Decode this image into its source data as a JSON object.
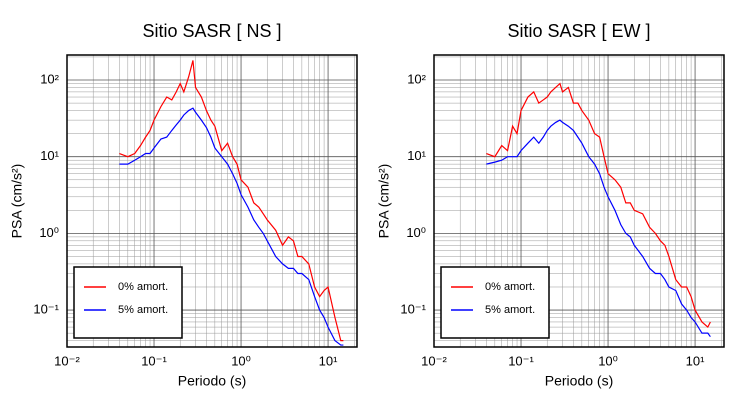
{
  "chart_data": [
    {
      "type": "line",
      "title": "Sitio SASR [ NS ]",
      "x_label": "Periodo (s)",
      "y_label": "PSA (cm/s²)",
      "log_x": true,
      "log_y": true,
      "grid": true,
      "legend": "lower left",
      "xlim": [
        0.01,
        21.5
      ],
      "ylim": [
        0.033,
        212
      ],
      "xticks": [
        {
          "value": 0.01,
          "label": "10⁻²"
        },
        {
          "value": 0.1,
          "label": "10⁻¹"
        },
        {
          "value": 1,
          "label": "10⁰"
        },
        {
          "value": 10,
          "label": "10¹"
        }
      ],
      "yticks": [
        {
          "value": 0.1,
          "label": "10⁻¹"
        },
        {
          "value": 1,
          "label": "10⁰"
        },
        {
          "value": 10,
          "label": "10¹"
        },
        {
          "value": 100,
          "label": "10²"
        }
      ],
      "x": [
        0.04,
        0.05,
        0.06,
        0.07,
        0.08,
        0.09,
        0.1,
        0.12,
        0.14,
        0.16,
        0.18,
        0.2,
        0.22,
        0.25,
        0.28,
        0.3,
        0.35,
        0.4,
        0.45,
        0.5,
        0.6,
        0.7,
        0.8,
        0.9,
        1.0,
        1.2,
        1.4,
        1.6,
        1.8,
        2,
        2.5,
        3,
        3.5,
        4,
        4.5,
        5,
        6,
        7,
        8,
        9,
        10,
        12,
        14,
        15
      ],
      "series": [
        {
          "name": "0% amort.",
          "color": "#ff0000",
          "values": [
            11,
            10,
            11,
            14,
            18,
            22,
            30,
            45,
            60,
            55,
            70,
            90,
            70,
            110,
            180,
            80,
            60,
            40,
            30,
            25,
            12,
            15,
            10,
            8,
            5,
            4,
            2.5,
            2.2,
            1.8,
            1.5,
            1.1,
            0.7,
            0.9,
            0.8,
            0.5,
            0.5,
            0.4,
            0.2,
            0.15,
            0.18,
            0.2,
            0.08,
            0.04,
            0.04
          ]
        },
        {
          "name": "5% amort.",
          "color": "#0000ff",
          "values": [
            8,
            8,
            9,
            10,
            11,
            11,
            13,
            17,
            18,
            22,
            26,
            30,
            35,
            40,
            43,
            38,
            30,
            24,
            18,
            13,
            10,
            8,
            6,
            4.5,
            3.2,
            2.2,
            1.5,
            1.2,
            1.0,
            0.8,
            0.5,
            0.4,
            0.35,
            0.35,
            0.3,
            0.3,
            0.25,
            0.15,
            0.1,
            0.08,
            0.06,
            0.04,
            0.035,
            0.035
          ]
        }
      ]
    },
    {
      "type": "line",
      "title": "Sitio SASR [ EW ]",
      "x_label": "Periodo (s)",
      "y_label": "PSA (cm/s²)",
      "log_x": true,
      "log_y": true,
      "grid": true,
      "legend": "lower left",
      "xlim": [
        0.01,
        21.5
      ],
      "ylim": [
        0.033,
        212
      ],
      "xticks": [
        {
          "value": 0.01,
          "label": "10⁻²"
        },
        {
          "value": 0.1,
          "label": "10⁻¹"
        },
        {
          "value": 1,
          "label": "10⁰"
        },
        {
          "value": 10,
          "label": "10¹"
        }
      ],
      "yticks": [
        {
          "value": 0.1,
          "label": "10⁻¹"
        },
        {
          "value": 1,
          "label": "10⁰"
        },
        {
          "value": 10,
          "label": "10¹"
        },
        {
          "value": 100,
          "label": "10²"
        }
      ],
      "x": [
        0.04,
        0.05,
        0.06,
        0.07,
        0.08,
        0.09,
        0.1,
        0.12,
        0.14,
        0.16,
        0.18,
        0.2,
        0.22,
        0.25,
        0.28,
        0.3,
        0.35,
        0.4,
        0.45,
        0.5,
        0.6,
        0.7,
        0.8,
        0.9,
        1.0,
        1.2,
        1.4,
        1.6,
        1.8,
        2,
        2.5,
        3,
        3.5,
        4,
        4.5,
        5,
        6,
        7,
        8,
        9,
        10,
        12,
        14,
        15
      ],
      "series": [
        {
          "name": "0% amort.",
          "color": "#ff0000",
          "values": [
            11,
            10,
            14,
            12,
            25,
            20,
            40,
            60,
            70,
            50,
            55,
            60,
            70,
            80,
            90,
            70,
            80,
            50,
            50,
            40,
            30,
            20,
            18,
            10,
            6,
            5,
            4,
            2.5,
            2.5,
            2.0,
            1.8,
            1.2,
            1.0,
            0.8,
            0.7,
            0.5,
            0.25,
            0.2,
            0.2,
            0.15,
            0.1,
            0.07,
            0.06,
            0.07
          ]
        },
        {
          "name": "5% amort.",
          "color": "#0000ff",
          "values": [
            8,
            8.5,
            9,
            10,
            10,
            10,
            12,
            15,
            18,
            15,
            18,
            22,
            25,
            28,
            30,
            28,
            25,
            22,
            18,
            15,
            10,
            8,
            6,
            4,
            3,
            2.0,
            1.3,
            1.0,
            0.9,
            0.7,
            0.5,
            0.35,
            0.3,
            0.3,
            0.25,
            0.2,
            0.18,
            0.12,
            0.1,
            0.08,
            0.07,
            0.05,
            0.05,
            0.045
          ]
        }
      ]
    }
  ]
}
